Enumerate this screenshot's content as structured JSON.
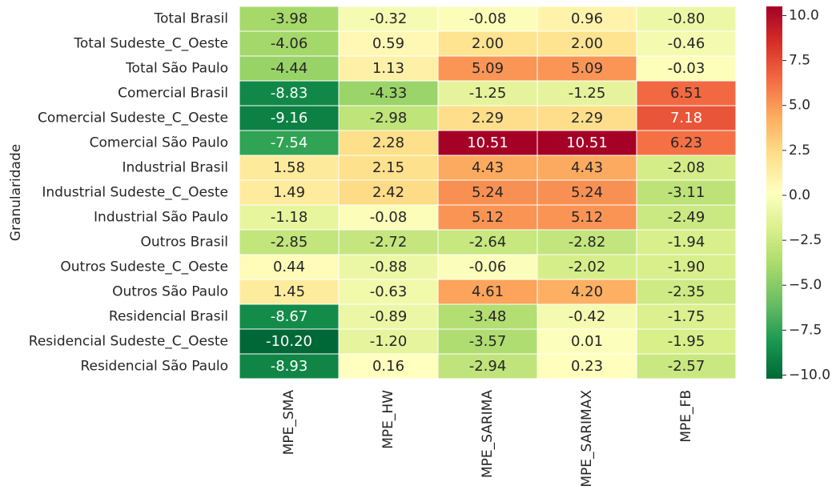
{
  "chart_data": {
    "type": "heatmap",
    "title": "",
    "xlabel": "",
    "ylabel": "Granularidade",
    "rows": [
      "Total Brasil",
      "Total Sudeste_C_Oeste",
      "Total São Paulo",
      "Comercial Brasil",
      "Comercial Sudeste_C_Oeste",
      "Comercial São Paulo",
      "Industrial Brasil",
      "Industrial Sudeste_C_Oeste",
      "Industrial São Paulo",
      "Outros Brasil",
      "Outros Sudeste_C_Oeste",
      "Outros São Paulo",
      "Residencial Brasil",
      "Residencial Sudeste_C_Oeste",
      "Residencial São Paulo"
    ],
    "columns": [
      "MPE_SMA",
      "MPE_HW",
      "MPE_SARIMA",
      "MPE_SARIMAX",
      "MPE_FB"
    ],
    "values": [
      [
        -3.98,
        -0.32,
        -0.08,
        0.96,
        -0.8
      ],
      [
        -4.06,
        0.59,
        2.0,
        2.0,
        -0.46
      ],
      [
        -4.44,
        1.13,
        5.09,
        5.09,
        -0.03
      ],
      [
        -8.83,
        -4.33,
        -1.25,
        -1.25,
        6.51
      ],
      [
        -9.16,
        -2.98,
        2.29,
        2.29,
        7.18
      ],
      [
        -7.54,
        2.28,
        10.51,
        10.51,
        6.23
      ],
      [
        1.58,
        2.15,
        4.43,
        4.43,
        -2.08
      ],
      [
        1.49,
        2.42,
        5.24,
        5.24,
        -3.11
      ],
      [
        -1.18,
        -0.08,
        5.12,
        5.12,
        -2.49
      ],
      [
        -2.85,
        -2.72,
        -2.64,
        -2.82,
        -1.94
      ],
      [
        0.44,
        -0.88,
        -0.06,
        -2.02,
        -1.9
      ],
      [
        1.45,
        -0.63,
        4.61,
        4.2,
        -2.35
      ],
      [
        -8.67,
        -0.89,
        -3.48,
        -0.42,
        -1.75
      ],
      [
        -10.2,
        -1.2,
        -3.57,
        0.01,
        -1.95
      ],
      [
        -8.93,
        0.16,
        -2.94,
        0.23,
        -2.57
      ]
    ],
    "colormap": "RdYlGn_r",
    "vmin": -10.2,
    "vmax": 10.51,
    "colorbar": {
      "ticks": [
        10.0,
        7.5,
        5.0,
        2.5,
        0.0,
        -2.5,
        -5.0,
        -7.5,
        -10.0
      ],
      "tick_labels": [
        "10.0",
        "7.5",
        "5.0",
        "2.5",
        "0.0",
        "−2.5",
        "−5.0",
        "−7.5",
        "−10.0"
      ],
      "placement": "right"
    },
    "annotations": "cell values, 2 decimals",
    "grid": false
  }
}
